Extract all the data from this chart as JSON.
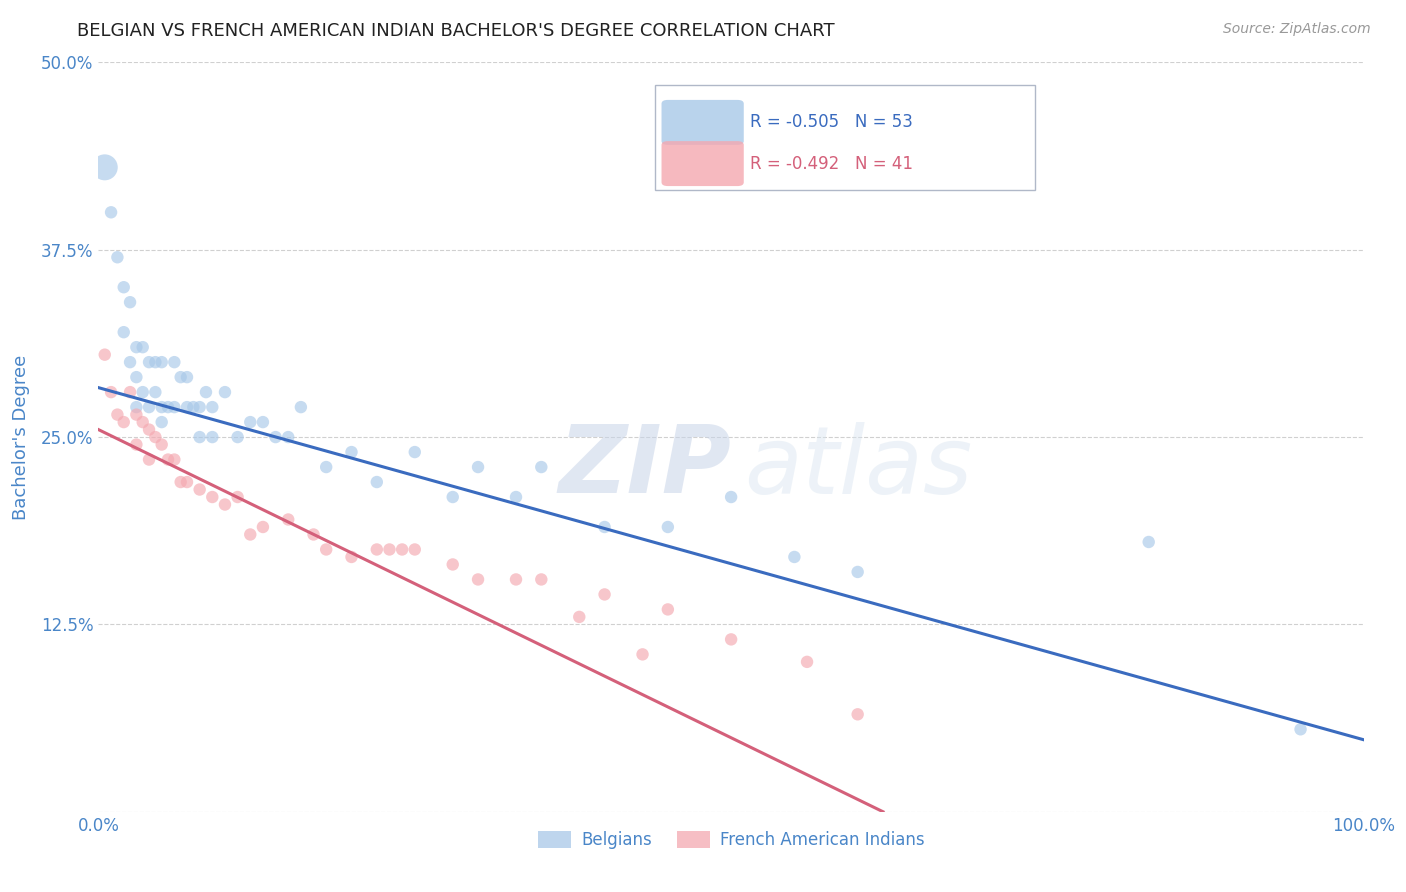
{
  "title": "BELGIAN VS FRENCH AMERICAN INDIAN BACHELOR'S DEGREE CORRELATION CHART",
  "source": "Source: ZipAtlas.com",
  "ylabel": "Bachelor's Degree",
  "xlim": [
    0,
    1.0
  ],
  "ylim": [
    0,
    0.5
  ],
  "yticks": [
    0.0,
    0.125,
    0.25,
    0.375,
    0.5
  ],
  "ytick_labels": [
    "",
    "12.5%",
    "25.0%",
    "37.5%",
    "50.0%"
  ],
  "xticks": [
    0.0,
    0.25,
    0.5,
    0.75,
    1.0
  ],
  "xtick_labels": [
    "0.0%",
    "",
    "",
    "",
    "100.0%"
  ],
  "belgian_R": -0.505,
  "belgian_N": 53,
  "french_R": -0.492,
  "french_N": 41,
  "blue_color": "#a8c8e8",
  "pink_color": "#f4a8b0",
  "blue_line_color": "#3a6bbf",
  "pink_line_color": "#d4607a",
  "background_color": "#ffffff",
  "grid_color": "#d0d0d0",
  "title_color": "#222222",
  "axis_label_color": "#4a86c8",
  "watermark_zip": "ZIP",
  "watermark_atlas": "atlas",
  "legend_label_blue": "Belgians",
  "legend_label_pink": "French American Indians",
  "blue_scatter_x": [
    0.005,
    0.01,
    0.015,
    0.02,
    0.02,
    0.025,
    0.025,
    0.03,
    0.03,
    0.03,
    0.035,
    0.035,
    0.04,
    0.04,
    0.045,
    0.045,
    0.05,
    0.05,
    0.05,
    0.055,
    0.06,
    0.06,
    0.065,
    0.07,
    0.07,
    0.075,
    0.08,
    0.08,
    0.085,
    0.09,
    0.09,
    0.1,
    0.11,
    0.12,
    0.13,
    0.14,
    0.15,
    0.16,
    0.18,
    0.2,
    0.22,
    0.25,
    0.28,
    0.3,
    0.33,
    0.35,
    0.4,
    0.45,
    0.5,
    0.55,
    0.6,
    0.83,
    0.95
  ],
  "blue_scatter_y": [
    0.43,
    0.4,
    0.37,
    0.35,
    0.32,
    0.34,
    0.3,
    0.31,
    0.29,
    0.27,
    0.31,
    0.28,
    0.3,
    0.27,
    0.3,
    0.28,
    0.3,
    0.27,
    0.26,
    0.27,
    0.3,
    0.27,
    0.29,
    0.29,
    0.27,
    0.27,
    0.27,
    0.25,
    0.28,
    0.27,
    0.25,
    0.28,
    0.25,
    0.26,
    0.26,
    0.25,
    0.25,
    0.27,
    0.23,
    0.24,
    0.22,
    0.24,
    0.21,
    0.23,
    0.21,
    0.23,
    0.19,
    0.19,
    0.21,
    0.17,
    0.16,
    0.18,
    0.055
  ],
  "blue_scatter_size": [
    350,
    80,
    80,
    80,
    80,
    80,
    80,
    80,
    80,
    80,
    80,
    80,
    80,
    80,
    80,
    80,
    80,
    80,
    80,
    80,
    80,
    80,
    80,
    80,
    80,
    80,
    80,
    80,
    80,
    80,
    80,
    80,
    80,
    80,
    80,
    80,
    80,
    80,
    80,
    80,
    80,
    80,
    80,
    80,
    80,
    80,
    80,
    80,
    80,
    80,
    80,
    80,
    80
  ],
  "pink_scatter_x": [
    0.005,
    0.01,
    0.015,
    0.02,
    0.025,
    0.03,
    0.03,
    0.035,
    0.04,
    0.04,
    0.045,
    0.05,
    0.055,
    0.06,
    0.065,
    0.07,
    0.08,
    0.09,
    0.1,
    0.11,
    0.12,
    0.13,
    0.15,
    0.17,
    0.18,
    0.2,
    0.22,
    0.23,
    0.24,
    0.25,
    0.28,
    0.3,
    0.33,
    0.35,
    0.38,
    0.4,
    0.43,
    0.45,
    0.5,
    0.56,
    0.6
  ],
  "pink_scatter_y": [
    0.305,
    0.28,
    0.265,
    0.26,
    0.28,
    0.265,
    0.245,
    0.26,
    0.255,
    0.235,
    0.25,
    0.245,
    0.235,
    0.235,
    0.22,
    0.22,
    0.215,
    0.21,
    0.205,
    0.21,
    0.185,
    0.19,
    0.195,
    0.185,
    0.175,
    0.17,
    0.175,
    0.175,
    0.175,
    0.175,
    0.165,
    0.155,
    0.155,
    0.155,
    0.13,
    0.145,
    0.105,
    0.135,
    0.115,
    0.1,
    0.065
  ],
  "pink_scatter_size": [
    80,
    80,
    80,
    80,
    80,
    80,
    80,
    80,
    80,
    80,
    80,
    80,
    80,
    80,
    80,
    80,
    80,
    80,
    80,
    80,
    80,
    80,
    80,
    80,
    80,
    80,
    80,
    80,
    80,
    80,
    80,
    80,
    80,
    80,
    80,
    80,
    80,
    80,
    80,
    80,
    80
  ],
  "blue_line_x0": 0.0,
  "blue_line_x1": 1.0,
  "blue_line_y0": 0.283,
  "blue_line_y1": 0.048,
  "pink_line_x0": 0.0,
  "pink_line_x1": 0.62,
  "pink_line_y0": 0.255,
  "pink_line_y1": 0.0
}
